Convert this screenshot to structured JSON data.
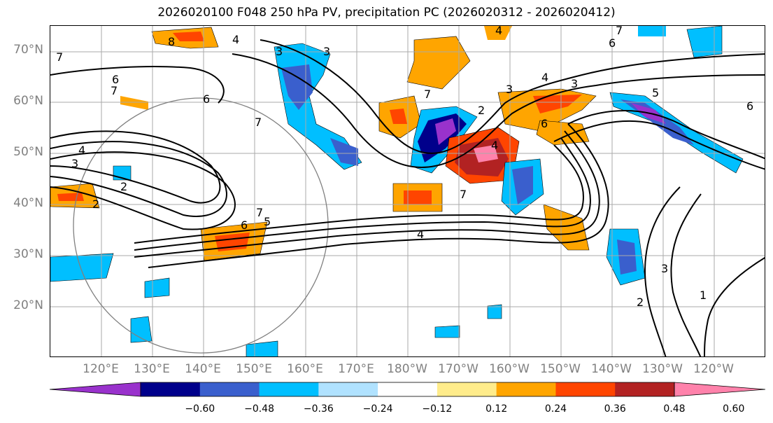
{
  "title": "2026020100 F048 250 hPa PV, precipitation PC (2026020312 - 2026020412)",
  "latitude_labels": [
    "70°N",
    "60°N",
    "50°N",
    "40°N",
    "30°N",
    "20°N"
  ],
  "longitude_labels": [
    "120°E",
    "130°E",
    "140°E",
    "150°E",
    "160°E",
    "170°E",
    "180°W",
    "170°W",
    "160°W",
    "150°W",
    "140°W",
    "130°W",
    "120°W"
  ],
  "contour_labels": [
    "8",
    "6",
    "6",
    "7",
    "3",
    "3",
    "3",
    "4",
    "7",
    "7",
    "7",
    "2",
    "3",
    "4",
    "4",
    "5",
    "6",
    "6",
    "6",
    "7",
    "7",
    "2",
    "3",
    "4",
    "4",
    "5",
    "6",
    "7",
    "4",
    "2",
    "3",
    "1",
    "2"
  ],
  "colorbar": {
    "ticks": [
      "−0.60",
      "−0.48",
      "−0.36",
      "−0.24",
      "−0.12",
      "0.12",
      "0.24",
      "0.36",
      "0.48",
      "0.60"
    ],
    "colors": [
      "#9932CC",
      "#00008B",
      "#3A5FCD",
      "#00BFFF",
      "#B0E2FF",
      "#FFFFFF",
      "#FFEC8B",
      "#FFA500",
      "#FF4500",
      "#B22222",
      "#FF82AB"
    ]
  },
  "colors": {
    "graticule": "#aaaaaa",
    "contour": "#000000",
    "axis_text": "#808080"
  }
}
